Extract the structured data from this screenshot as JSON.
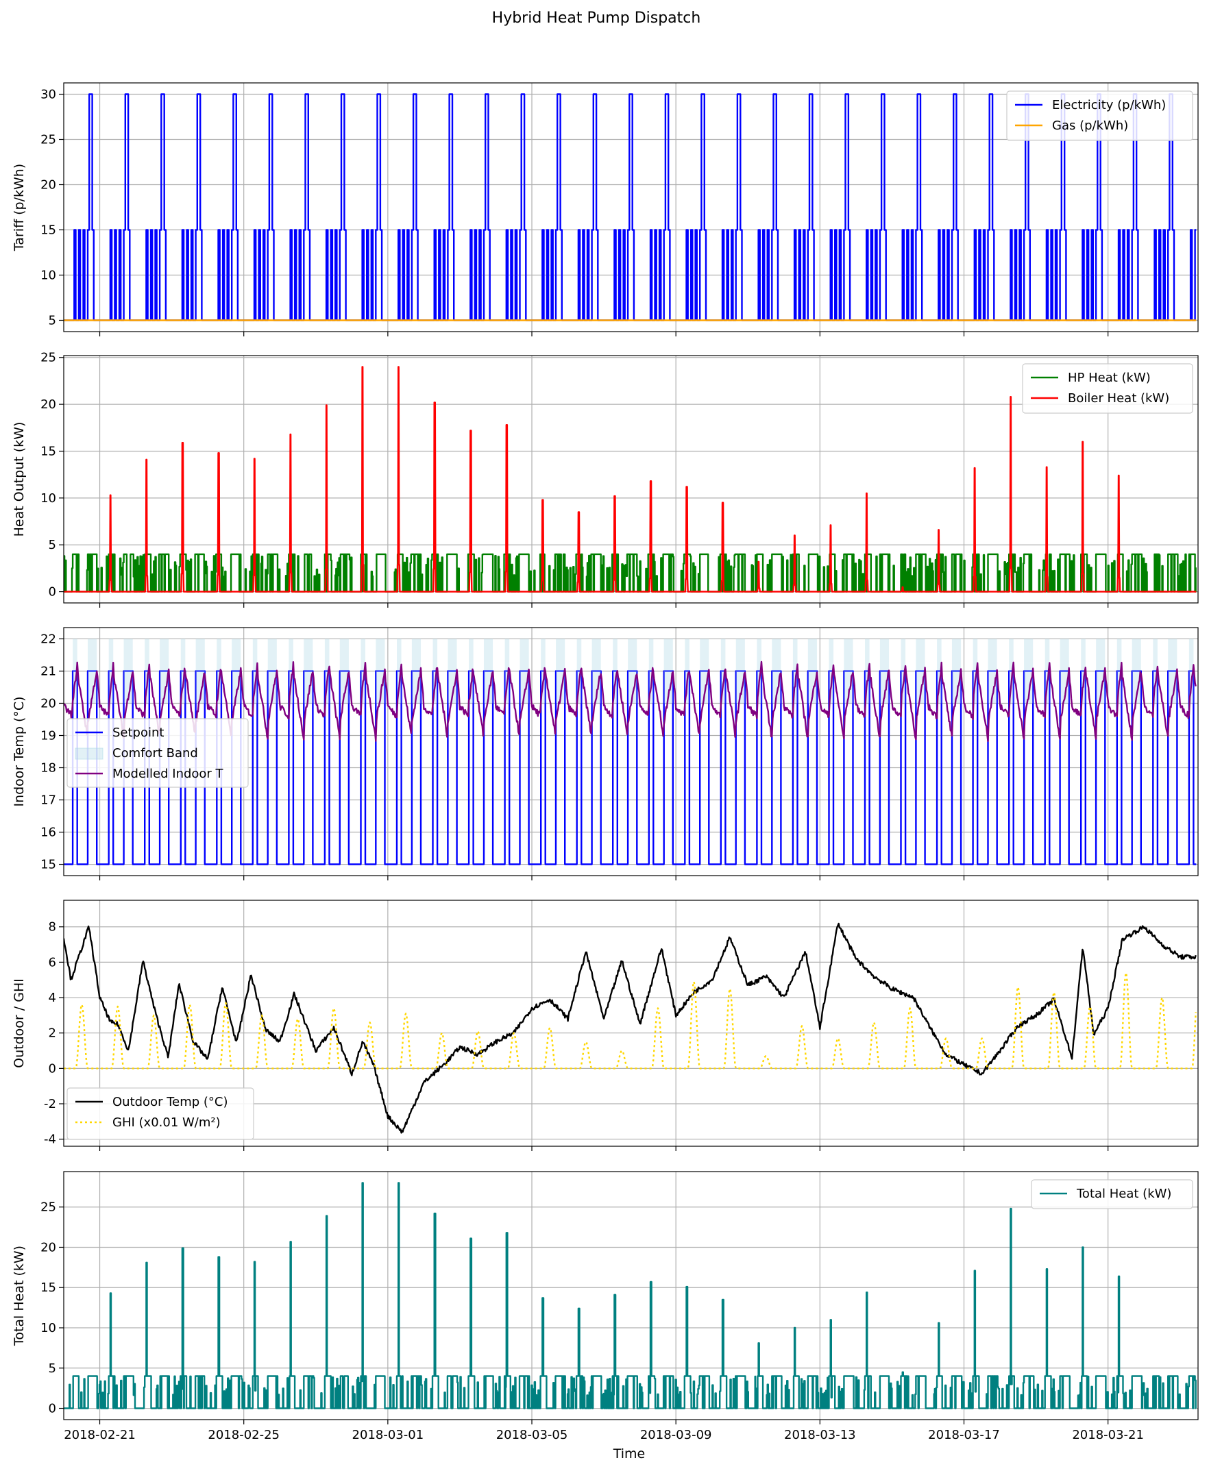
{
  "figure": {
    "title": "Hybrid Heat Pump Dispatch",
    "xlabel": "Time",
    "x_range": [
      "2018-02-20T00:00",
      "2018-03-23T12:00"
    ],
    "x_ticks": [
      "2018-02-21",
      "2018-02-25",
      "2018-03-01",
      "2018-03-05",
      "2018-03-09",
      "2018-03-13",
      "2018-03-17",
      "2018-03-21"
    ],
    "grid": true
  },
  "chart_data": [
    {
      "type": "line",
      "id": "tariff",
      "ylabel": "Tariff (p/kWh)",
      "ylim": [
        3.75,
        31.25
      ],
      "yticks": [
        5,
        10,
        15,
        20,
        25,
        30
      ],
      "legend_position": "top-right",
      "series": [
        {
          "name": "Electricity (p/kWh)",
          "color": "#0000ff",
          "style": "solid",
          "daily_profile_hours": [
            0,
            7,
            8,
            10,
            11,
            13,
            14,
            16,
            17,
            19,
            20,
            24
          ],
          "daily_profile_values": [
            5,
            15,
            5,
            15,
            5,
            15,
            5,
            15,
            30,
            15,
            5
          ]
        },
        {
          "name": "Gas (p/kWh)",
          "color": "#ffa500",
          "style": "solid",
          "value": 5
        }
      ]
    },
    {
      "type": "line",
      "id": "heat-output",
      "ylabel": "Heat Output (kW)",
      "ylim": [
        -1.2,
        25.2
      ],
      "yticks": [
        0,
        5,
        10,
        15,
        20,
        25
      ],
      "legend_position": "top-right",
      "series": [
        {
          "name": "HP Heat (kW)",
          "color": "#008000",
          "style": "solid",
          "max": 4
        },
        {
          "name": "Boiler Heat (kW)",
          "color": "#ff0000",
          "style": "solid",
          "daily_peak_values": [
            10.3,
            14.1,
            15.9,
            14.8,
            14.2,
            16.8,
            19.9,
            24.0,
            24.0,
            20.2,
            17.2,
            17.8,
            9.8,
            8.5,
            10.2,
            11.8,
            11.2,
            9.5,
            3.2,
            6.0,
            7.1,
            10.5,
            0.5,
            6.6,
            13.2,
            20.8,
            13.3,
            16.0,
            12.4
          ]
        }
      ]
    },
    {
      "type": "line",
      "id": "indoor-temp",
      "ylabel": "Indoor Temp (°C)",
      "ylim": [
        14.65,
        22.35
      ],
      "yticks": [
        15,
        16,
        17,
        18,
        19,
        20,
        21,
        22
      ],
      "legend_position": "center-left",
      "series": [
        {
          "name": "Setpoint",
          "color": "#0000ff",
          "style": "solid",
          "occupied_value": 21,
          "unoccupied_value": 15
        },
        {
          "name": "Comfort Band",
          "color": "#add8e6",
          "style": "fill",
          "range": [
            20,
            22
          ]
        },
        {
          "name": "Modelled Indoor T",
          "color": "#800080",
          "style": "solid",
          "range": [
            18.3,
            21.4
          ]
        }
      ]
    },
    {
      "type": "line",
      "id": "outdoor",
      "ylabel": "Outdoor / GHI",
      "ylim": [
        -4.4,
        9.5
      ],
      "yticks": [
        -4,
        -2,
        0,
        2,
        4,
        6,
        8
      ],
      "legend_position": "bottom-left",
      "series": [
        {
          "name": "Outdoor Temp (°C)",
          "color": "#000000",
          "style": "solid",
          "anchors_day": [
            0,
            0.2,
            0.7,
            1.0,
            1.3,
            1.5,
            1.8,
            2.2,
            2.5,
            2.9,
            3.2,
            3.6,
            4.0,
            4.4,
            4.8,
            5.2,
            5.6,
            6.0,
            6.4,
            7.0,
            7.5,
            8.0,
            8.3,
            8.6,
            9.0,
            9.4,
            10.0,
            10.6,
            11.0,
            11.5,
            12.0,
            12.5,
            13.0,
            13.5,
            14.0,
            14.5,
            15.0,
            15.5,
            16.0,
            16.6,
            17.0,
            17.5,
            18.0,
            18.5,
            19.0,
            19.5,
            20.0,
            20.6,
            21.0,
            21.5,
            22.0,
            22.5,
            23.0,
            23.6,
            24.0,
            24.5,
            25.0,
            25.5,
            26.0,
            26.5,
            27.0,
            27.5,
            28.0,
            28.3,
            28.6,
            29.0,
            29.4,
            30.0,
            30.5,
            31.0
          ],
          "anchors_value": [
            7.4,
            5.0,
            8.0,
            4.0,
            2.6,
            2.5,
            1.0,
            6.1,
            3.5,
            0.6,
            4.8,
            1.5,
            0.5,
            4.6,
            1.4,
            5.3,
            2.2,
            1.5,
            4.2,
            1.0,
            2.3,
            -0.3,
            1.5,
            0.2,
            -2.7,
            -3.6,
            -0.8,
            0.3,
            1.2,
            0.8,
            1.5,
            2.0,
            3.4,
            3.9,
            2.8,
            6.6,
            2.8,
            6.1,
            2.5,
            6.8,
            3.0,
            4.3,
            5.0,
            7.4,
            4.7,
            5.2,
            4.0,
            6.6,
            2.3,
            8.2,
            6.2,
            5.2,
            4.5,
            4.0,
            2.5,
            0.8,
            0.2,
            -0.3,
            1.0,
            2.4,
            3.0,
            3.9,
            0.6,
            6.9,
            1.9,
            3.4,
            7.3,
            8.0,
            7.0,
            6.3
          ]
        },
        {
          "name": "GHI (x0.01 W/m²)",
          "color": "#ffd700",
          "style": "dotted",
          "daily_peak_values": [
            3.6,
            3.5,
            3.0,
            3.6,
            3.7,
            3.0,
            2.8,
            3.4,
            2.6,
            3.1,
            2.0,
            2.1,
            2.0,
            2.3,
            1.5,
            1.0,
            3.4,
            4.9,
            4.5,
            0.7,
            2.4,
            1.7,
            2.6,
            3.4,
            1.7,
            1.7,
            4.6,
            4.3,
            3.5,
            5.4,
            4.0,
            4.6
          ]
        }
      ]
    },
    {
      "type": "line",
      "id": "total-heat",
      "ylabel": "Total Heat (kW)",
      "ylim": [
        -1.4,
        29.4
      ],
      "yticks": [
        0,
        5,
        10,
        15,
        20,
        25
      ],
      "legend_position": "top-right",
      "series": [
        {
          "name": "Total Heat (kW)",
          "color": "#008080",
          "style": "solid",
          "daily_peak_values": [
            14.3,
            18.1,
            19.9,
            18.8,
            18.2,
            20.7,
            23.9,
            28.0,
            28.0,
            24.2,
            21.1,
            21.8,
            13.7,
            12.4,
            14.1,
            15.7,
            15.1,
            13.5,
            8.1,
            10.0,
            11.0,
            14.4,
            4.5,
            10.6,
            17.1,
            24.8,
            17.3,
            20.0,
            16.4
          ]
        }
      ]
    }
  ]
}
